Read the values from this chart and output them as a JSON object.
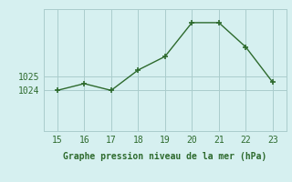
{
  "x": [
    15,
    16,
    17,
    18,
    19,
    20,
    21,
    22,
    23
  ],
  "y": [
    1024.0,
    1024.5,
    1024.0,
    1025.5,
    1026.5,
    1029.0,
    1029.0,
    1027.2,
    1024.6
  ],
  "line_color": "#2d6a2d",
  "marker": "+",
  "marker_size": 5,
  "bg_color": "#d6f0f0",
  "grid_color": "#aacccc",
  "xlabel": "Graphe pression niveau de la mer (hPa)",
  "xlabel_color": "#2d6a2d",
  "ytick_labels": [
    "1024",
    "1025"
  ],
  "ytick_values": [
    1024,
    1025
  ],
  "ylim": [
    1021.0,
    1030.0
  ],
  "xlim": [
    14.5,
    23.5
  ],
  "xticks": [
    15,
    16,
    17,
    18,
    19,
    20,
    21,
    22,
    23
  ],
  "font_size_axis": 7,
  "font_size_label": 7,
  "linewidth": 1.0
}
